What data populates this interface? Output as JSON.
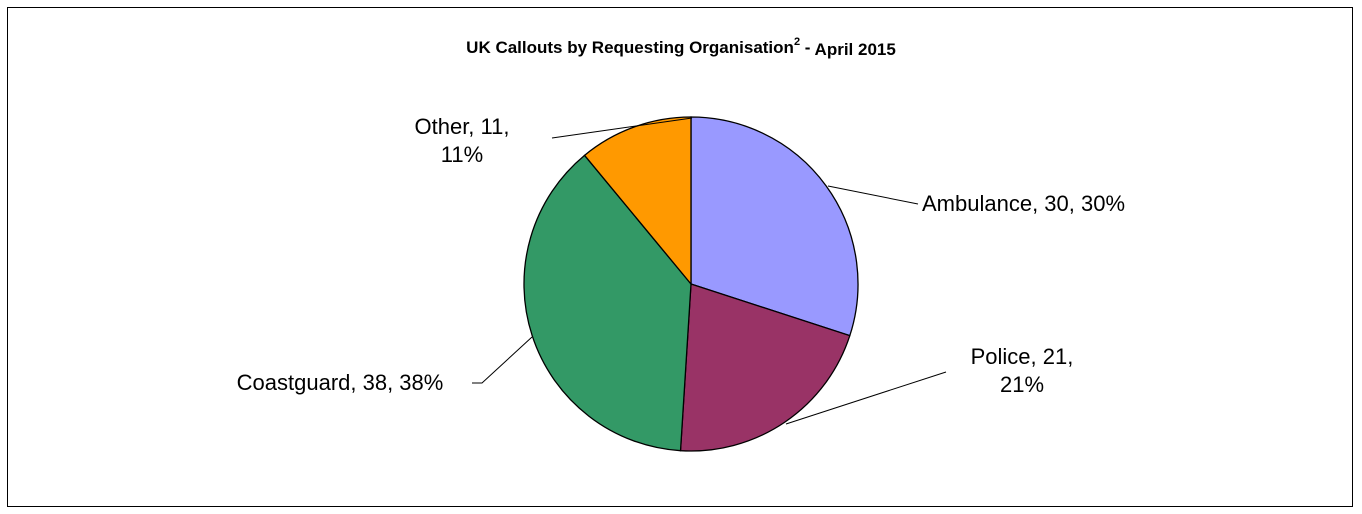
{
  "chart_data": {
    "type": "pie",
    "title_main": "UK Callouts by Requesting Organisation",
    "title_sup": "2",
    "title_sep": " - ",
    "title_date": "April 2015",
    "slices": [
      {
        "name": "Ambulance",
        "value": 30,
        "percent": 30,
        "color": "#9999ff",
        "label_lines": [
          "Ambulance, 30, 30%"
        ]
      },
      {
        "name": "Police",
        "value": 21,
        "percent": 21,
        "color": "#993366",
        "label_lines": [
          "Police, 21,",
          "21%"
        ]
      },
      {
        "name": "Coastguard",
        "value": 38,
        "percent": 38,
        "color": "#339966",
        "label_lines": [
          "Coastguard, 38, 38%"
        ]
      },
      {
        "name": "Other",
        "value": 11,
        "percent": 11,
        "color": "#ff9900",
        "label_lines": [
          "Other, 11,",
          "11%"
        ]
      }
    ],
    "start_angle": "12 o'clock",
    "direction": "clockwise",
    "legend": "none"
  }
}
